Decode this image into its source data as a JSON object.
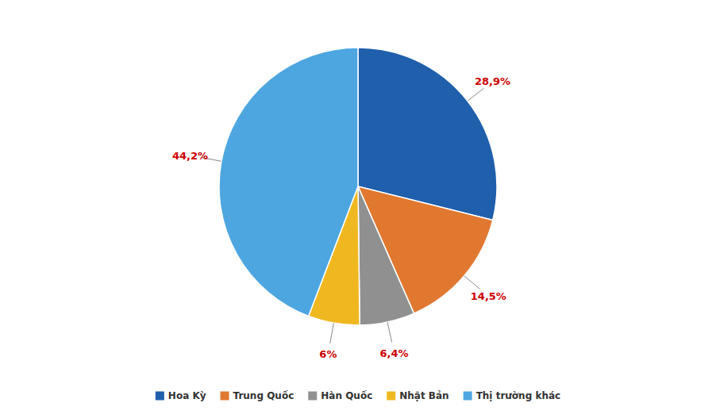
{
  "chart_data": {
    "type": "pie",
    "categories": [
      "Hoa Kỳ",
      "Trung Quốc",
      "Hàn Quốc",
      "Nhật Bản",
      "Thị trường khác"
    ],
    "values": [
      28.9,
      14.5,
      6.4,
      6.0,
      44.2
    ],
    "value_labels": [
      "28,9%",
      "14,5%",
      "6,4%",
      "6%",
      "44,2%"
    ],
    "colors": [
      "#1f5fac",
      "#e07830",
      "#909090",
      "#f0b820",
      "#4da6e0"
    ],
    "data_labels": true,
    "legend": "bottom"
  }
}
